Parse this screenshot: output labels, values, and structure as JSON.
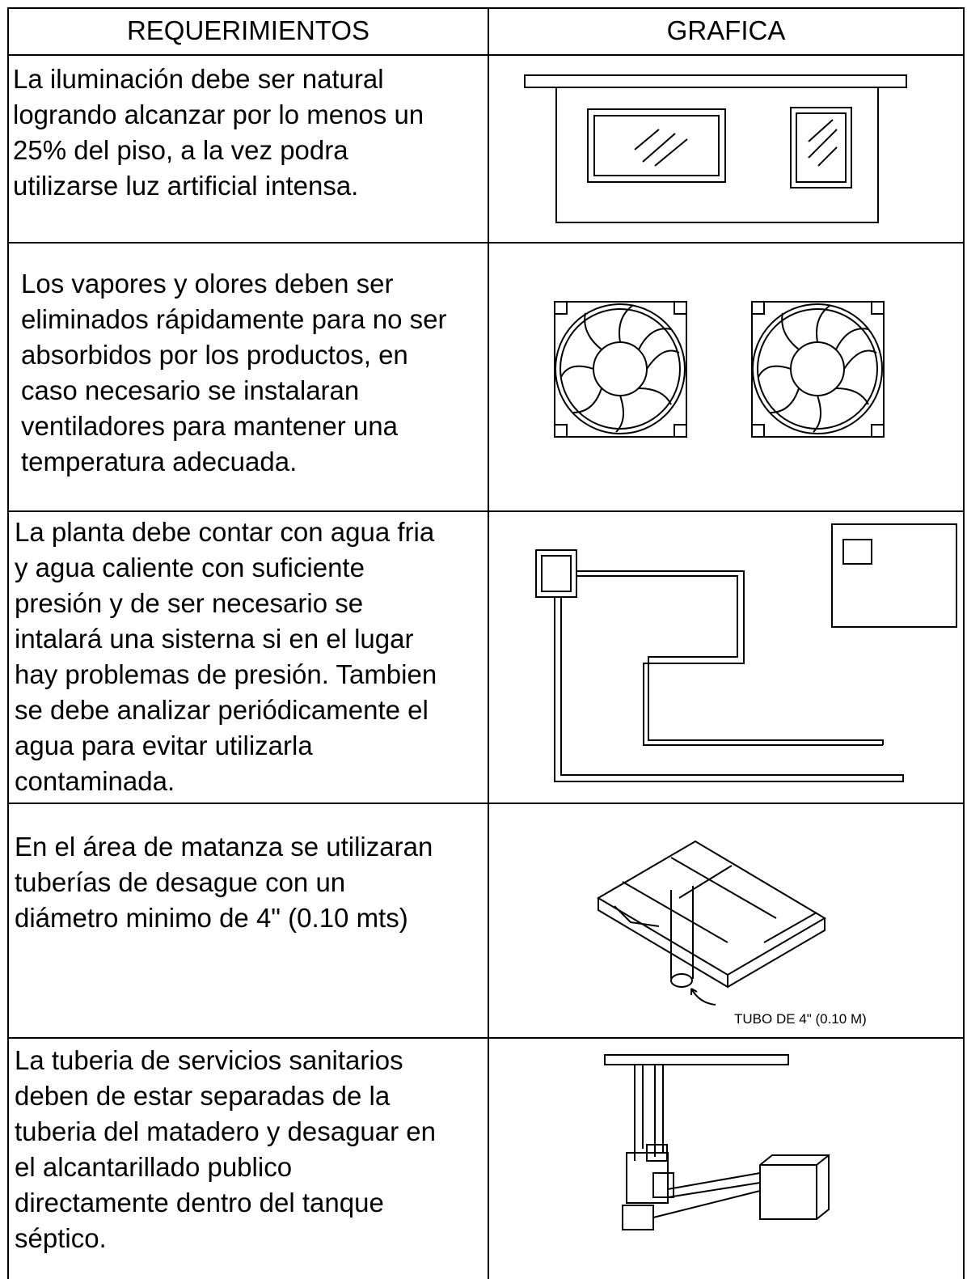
{
  "table": {
    "header": [
      "REQUERIMIENTOS",
      "GRAFICA"
    ],
    "rows": [
      {
        "text": [
          "La iluminación debe ser natural",
          "logrando alcanzar por lo menos un",
          "25% del piso, a la vez podra",
          "utilizarse luz artificial intensa."
        ]
      },
      {
        "text": [
          "Los vapores y olores deben ser",
          "eliminados rápidamente para no ser",
          "absorbidos por los productos, en",
          "caso necesario se instalaran",
          "ventiladores para mantener una",
          "temperatura adecuada."
        ]
      },
      {
        "text": [
          "La planta debe contar con agua fria",
          "y agua caliente con suficiente",
          "presión y de ser necesario se",
          "intalará una sisterna si en el lugar",
          "hay problemas de presión. Tambien",
          "se debe analizar periódicamente el",
          "agua para evitar utilizarla",
          "contaminada."
        ]
      },
      {
        "text": [
          "En el área de matanza se utilizaran",
          "tuberías de desague con un",
          "diámetro minimo de 4\" (0.10 mts)"
        ],
        "graphic_label": "TUBO DE 4\" (0.10 M)"
      },
      {
        "text": [
          "La tuberia de servicios sanitarios",
          "deben de estar separadas de la",
          "tuberia del matadero y desaguar en",
          "el alcantarillado publico",
          "directamente dentro del tanque",
          "séptico."
        ]
      }
    ]
  }
}
